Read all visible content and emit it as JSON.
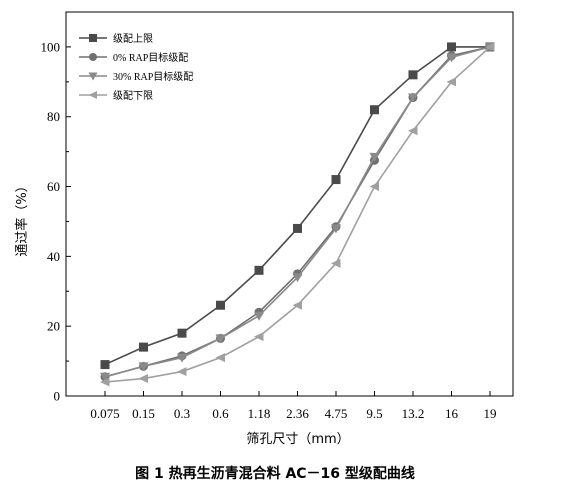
{
  "chart_data": {
    "type": "line",
    "title": "图 1 热再生沥青混合料 AC－16 型级配曲线",
    "xlabel": "筛孔尺寸（mm）",
    "ylabel": "通过率（%）",
    "categories": [
      "0.075",
      "0.15",
      "0.3",
      "0.6",
      "1.18",
      "2.36",
      "4.75",
      "9.5",
      "13.2",
      "16",
      "19"
    ],
    "ylim": [
      0,
      110
    ],
    "yticks": [
      0,
      20,
      40,
      60,
      80,
      100
    ],
    "grid": false,
    "legend_position": "top-left",
    "series": [
      {
        "name": "级配上限",
        "marker": "square",
        "color": "#4a4a4a",
        "values": [
          9,
          14,
          18,
          26,
          36,
          48,
          62,
          82,
          92,
          100,
          100
        ]
      },
      {
        "name": "0% RAP目标级配",
        "marker": "circle",
        "color": "#707070",
        "values": [
          5.5,
          8.5,
          11.5,
          16.5,
          24,
          35,
          48.5,
          67.5,
          85.5,
          97.5,
          100
        ]
      },
      {
        "name": "30% RAP目标级配",
        "marker": "triangle-down",
        "color": "#8a8a8a",
        "values": [
          5.5,
          8.5,
          11,
          16.5,
          23,
          34,
          48,
          68.5,
          85.5,
          97,
          100
        ]
      },
      {
        "name": "级配下限",
        "marker": "triangle-left",
        "color": "#a0a0a0",
        "values": [
          4,
          5,
          7,
          11,
          17,
          26,
          38,
          60,
          76,
          90,
          100
        ]
      }
    ]
  }
}
